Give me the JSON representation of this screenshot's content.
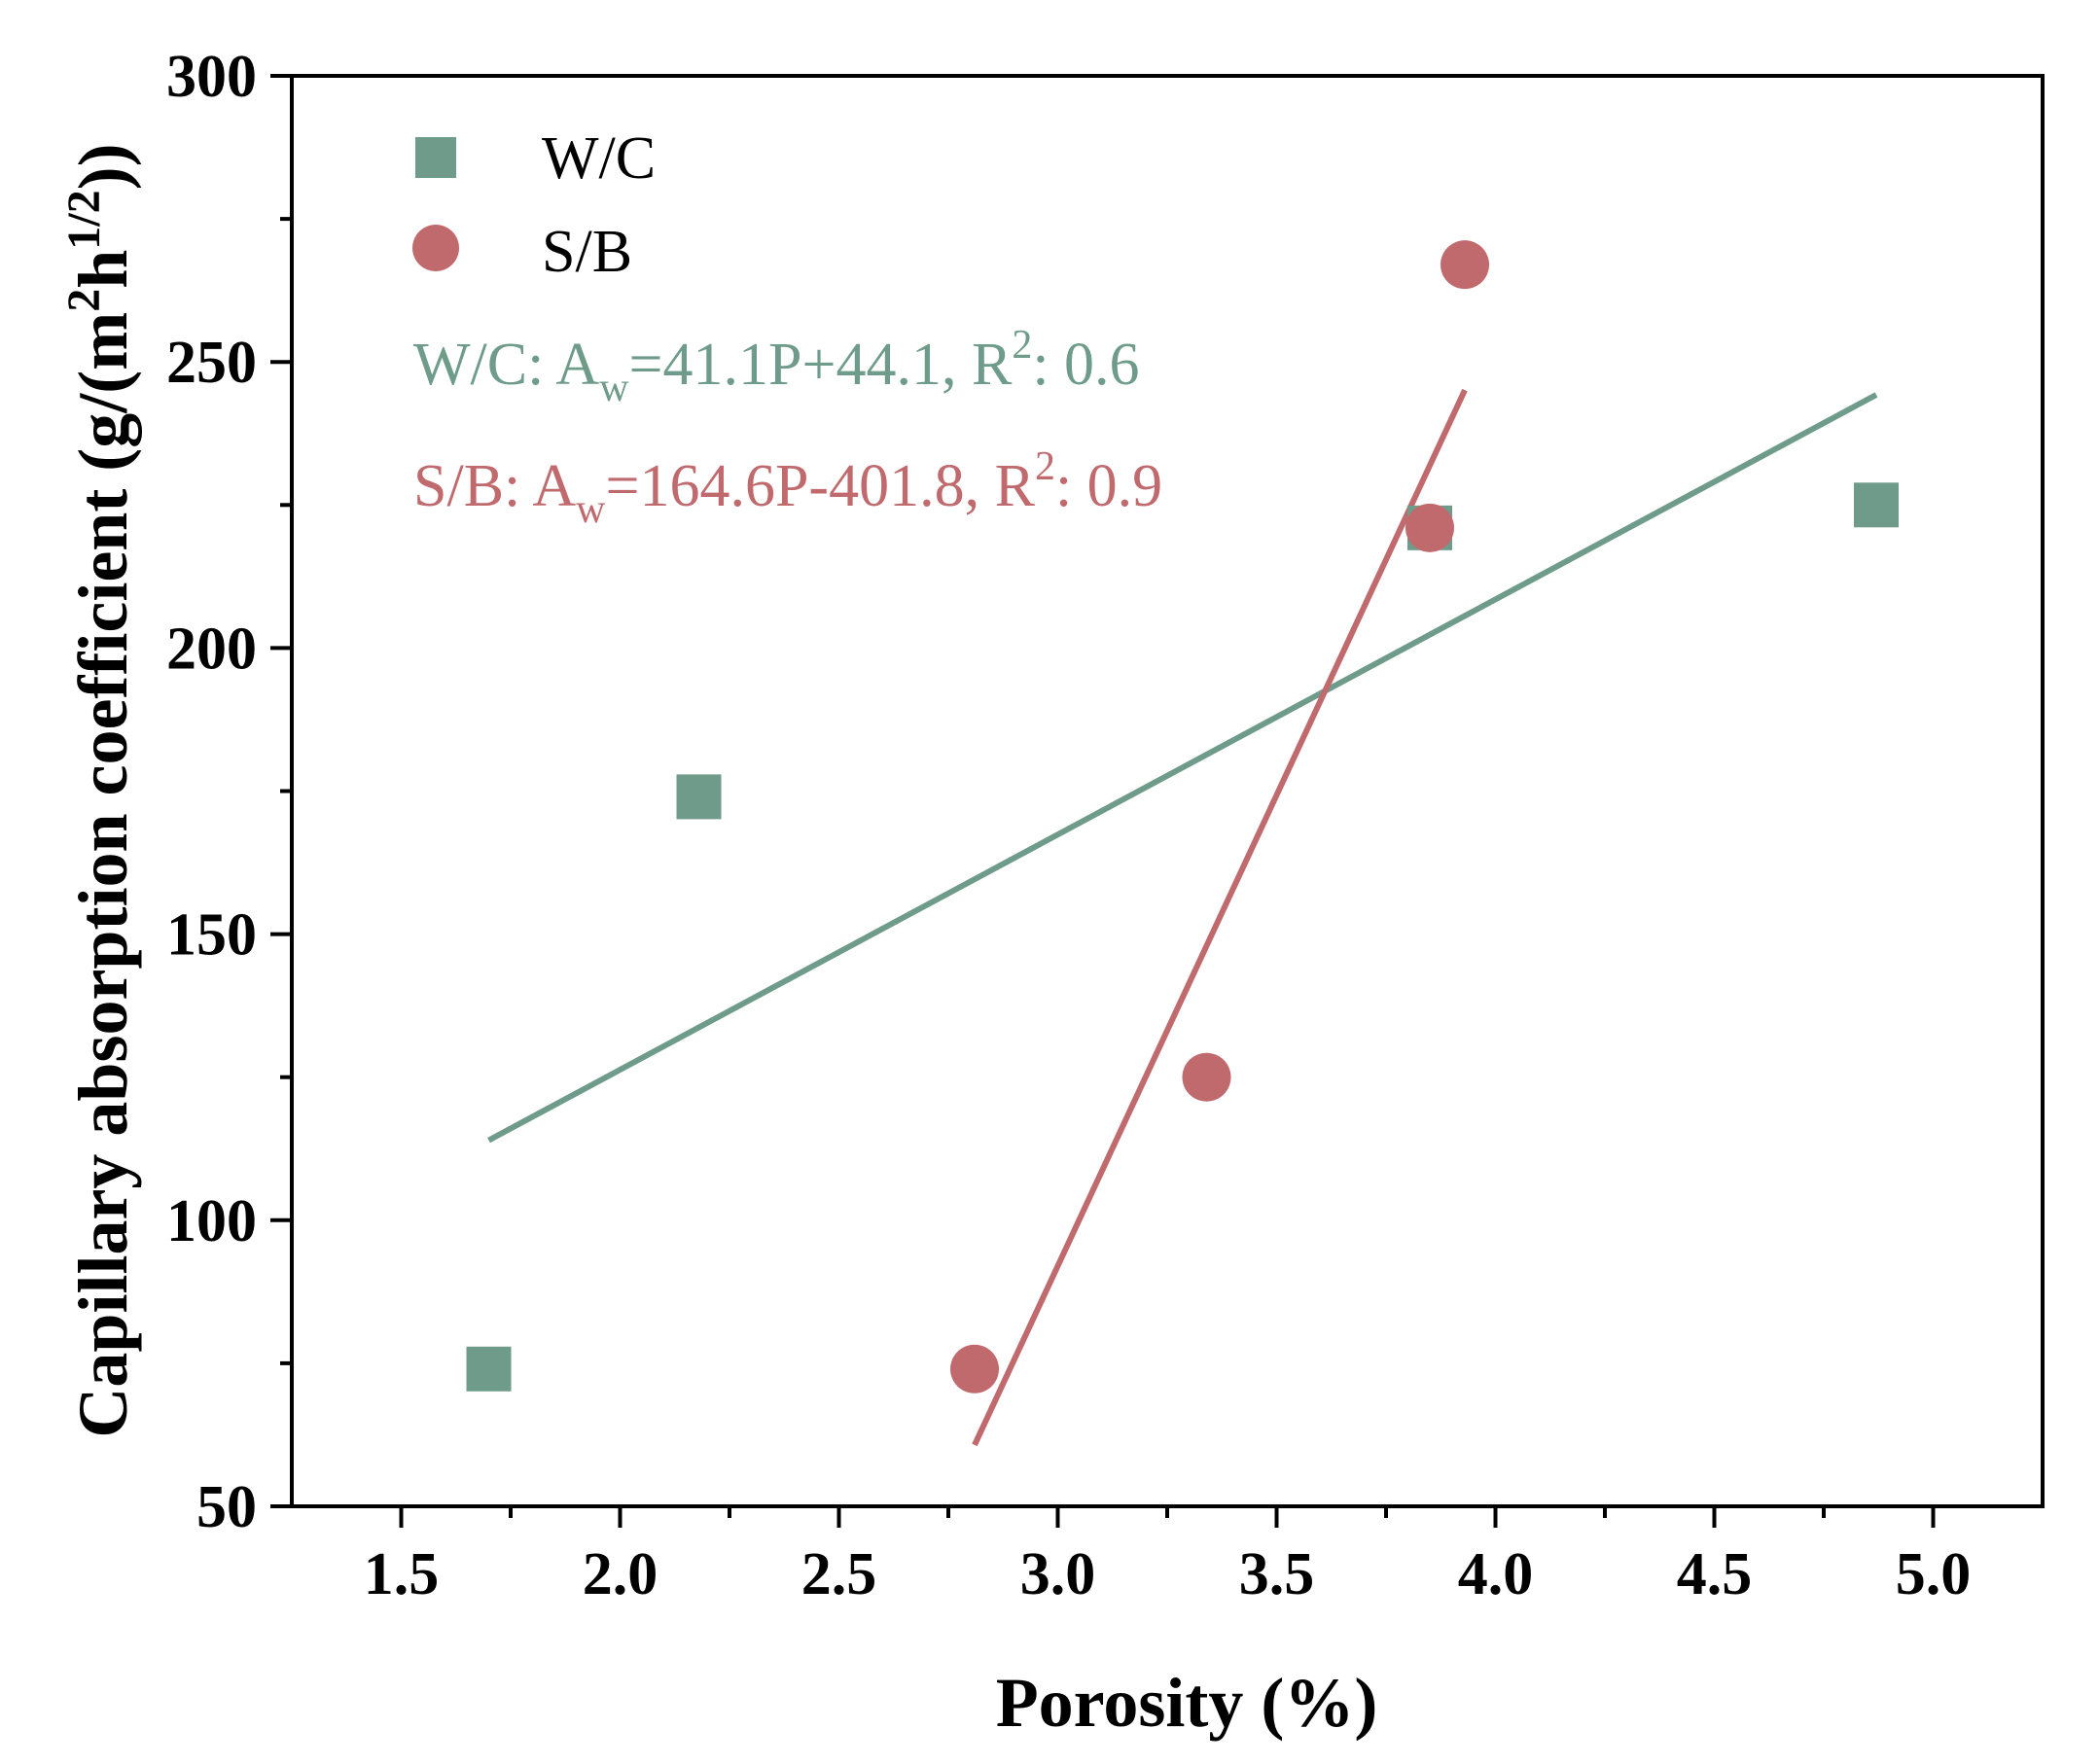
{
  "colors": {
    "wc": "#6f9c8a",
    "sb": "#c06a6e",
    "axis": "#000000"
  },
  "chart_data": {
    "type": "scatter",
    "xlabel": "Porosity (%)",
    "ylabel": {
      "main": "Capillary absorption coefficient (g/(m",
      "sup1": "2",
      "mid": "h",
      "sup2": "1/2",
      "end": "))"
    },
    "xlim": [
      1.25,
      5.25
    ],
    "ylim": [
      50,
      300
    ],
    "xticks": [
      1.5,
      2.0,
      2.5,
      3.0,
      3.5,
      4.0,
      4.5,
      5.0
    ],
    "xtick_labels": [
      "1.5",
      "2.0",
      "2.5",
      "3.0",
      "3.5",
      "4.0",
      "4.5",
      "5.0"
    ],
    "xticks_minor": [
      1.75,
      2.25,
      2.75,
      3.25,
      3.75,
      4.25,
      4.75
    ],
    "yticks": [
      50,
      100,
      150,
      200,
      250,
      300
    ],
    "ytick_labels": [
      "50",
      "100",
      "150",
      "200",
      "250",
      "300"
    ],
    "yticks_minor": [
      75,
      125,
      175,
      225,
      275
    ],
    "series": [
      {
        "name": "W/C",
        "marker": "square",
        "color": "#6f9c8a",
        "points": [
          [
            1.7,
            74
          ],
          [
            2.18,
            174
          ],
          [
            3.85,
            221
          ],
          [
            4.87,
            225
          ]
        ],
        "fit": {
          "slope": 41.1,
          "intercept": 44.1,
          "x_range": [
            1.7,
            4.87
          ]
        },
        "equation": {
          "prefix": "W/C: A",
          "sub": "w",
          "mid": "=41.1P+44.1, R",
          "sup": "2",
          "end": ": 0.6"
        }
      },
      {
        "name": "S/B",
        "marker": "circle",
        "color": "#c06a6e",
        "points": [
          [
            2.81,
            74
          ],
          [
            3.34,
            125
          ],
          [
            3.85,
            221
          ],
          [
            3.93,
            267
          ]
        ],
        "fit": {
          "slope": 164.6,
          "intercept": -401.8,
          "x_range": [
            2.81,
            3.93
          ]
        },
        "equation": {
          "prefix": "S/B: A",
          "sub": "w",
          "mid": "=164.6P-401.8, R",
          "sup": "2",
          "end": ": 0.9"
        }
      }
    ],
    "legend": {
      "position": "top-left",
      "entries": [
        "W/C",
        "S/B"
      ]
    }
  }
}
